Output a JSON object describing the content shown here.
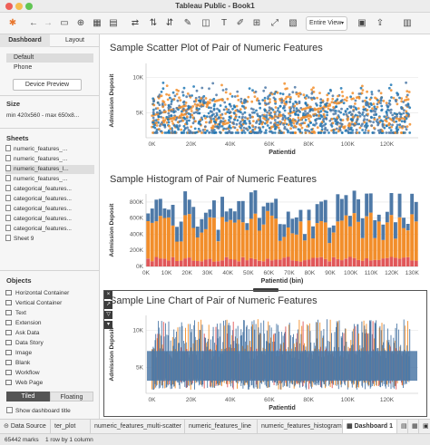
{
  "window": {
    "title": "Tableau Public - Book1"
  },
  "toolbar": {
    "view_select": "Entire View",
    "icons": [
      "tableau-logo-icon",
      "back-arrow-icon",
      "forward-arrow-icon",
      "save-icon",
      "add-datasource-icon",
      "new-sheet-icon",
      "swap-icon",
      "sort-icon",
      "highlight-icon",
      "label-icon",
      "present-icon"
    ]
  },
  "left_panel": {
    "tabs": [
      {
        "label": "Dashboard"
      },
      {
        "label": "Layout"
      }
    ],
    "devices": [
      {
        "label": "Default"
      },
      {
        "label": "Phone"
      }
    ],
    "device_preview": "Device Preview",
    "size_title": "Size",
    "size_value": "min 420x560 - max 650x8...",
    "sheets_title": "Sheets",
    "sheets": [
      {
        "label": "numeric_features_..."
      },
      {
        "label": "numeric_features_..."
      },
      {
        "label": "numeric_features_l..."
      },
      {
        "label": "numeric_features_..."
      },
      {
        "label": "categorical_features..."
      },
      {
        "label": "categorical_features..."
      },
      {
        "label": "categorical_features..."
      },
      {
        "label": "categorical_features..."
      },
      {
        "label": "categorical_features..."
      },
      {
        "label": "Sheet 9"
      }
    ],
    "objects_title": "Objects",
    "objects": [
      {
        "label": "Horizontal Container"
      },
      {
        "label": "Vertical Container"
      },
      {
        "label": "Text"
      },
      {
        "label": "Extension"
      },
      {
        "label": "Ask Data"
      },
      {
        "label": "Data Story"
      },
      {
        "label": "Image"
      },
      {
        "label": "Blank"
      },
      {
        "label": "Workflow"
      },
      {
        "label": "Web Page"
      }
    ],
    "tiled": "Tiled",
    "floating": "Floating",
    "show_title": "Show dashboard title"
  },
  "charts": [
    {
      "title": "Sample Scatter Plot of Pair of Numeric Features",
      "xlabel": "Patientid",
      "ylabel": "Admission Deposit",
      "xticks": [
        "0K",
        "20K",
        "40K",
        "60K",
        "80K",
        "100K",
        "120K"
      ],
      "yticks": [
        "5K",
        "10K"
      ],
      "colors": [
        "#1f77b4",
        "#f28e2b",
        "#4e79a7"
      ]
    },
    {
      "title": "Sample Histogram of Pair of Numeric Features",
      "xlabel": "Patientid (bin)",
      "ylabel": "Admission Deposit",
      "xticks": [
        "0K",
        "10K",
        "20K",
        "30K",
        "40K",
        "50K",
        "60K",
        "70K",
        "80K",
        "90K",
        "100K",
        "110K",
        "120K",
        "130K"
      ],
      "yticks": [
        "0K",
        "200K",
        "400K",
        "600K",
        "800K"
      ],
      "colors": [
        "#4e79a7",
        "#f28e2b",
        "#e15759"
      ]
    },
    {
      "title": "Sample Line Chart of Pair of Numeric Features",
      "xlabel": "Patientid",
      "ylabel": "Admission Deposit",
      "xticks": [
        "0K",
        "20K",
        "40K",
        "60K",
        "80K",
        "100K",
        "120K"
      ],
      "yticks": [
        "5K",
        "10K"
      ],
      "colors": [
        "#4e79a7",
        "#f28e2b",
        "#e15759"
      ]
    }
  ],
  "sheet_tabs": [
    {
      "label": "Data Source"
    },
    {
      "label": "ter_plot"
    },
    {
      "label": "numeric_features_multi-scatter"
    },
    {
      "label": "numeric_features_line"
    },
    {
      "label": "numeric_features_histogram"
    },
    {
      "label": "Dashboard 1"
    }
  ],
  "status": {
    "marks": "65442 marks",
    "rows": "1 row by 1 column"
  }
}
